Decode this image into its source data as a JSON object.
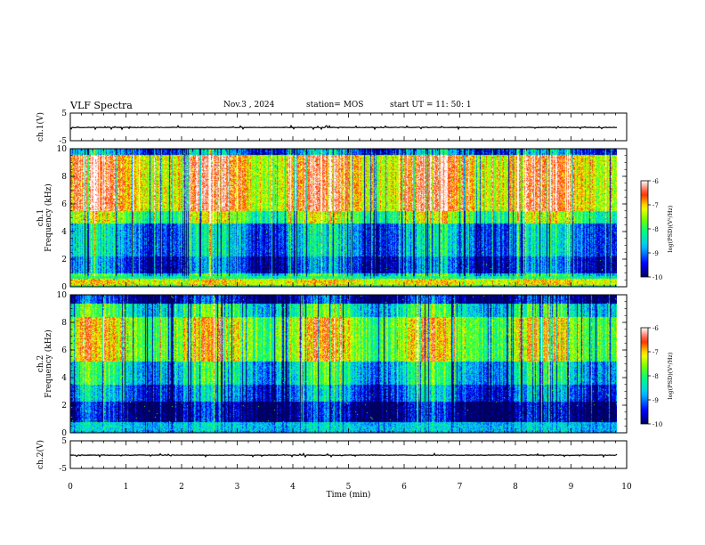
{
  "header": {
    "title": "VLF Spectra",
    "date": "Nov.3  , 2024",
    "station": "station= MOS",
    "start_ut": "start  UT =   11: 50: 1"
  },
  "chart_data": [
    {
      "panel": "ch1-waveform",
      "type": "line",
      "ylabel": "ch.1(V)",
      "ylim": [
        -5,
        5
      ],
      "yticks": [
        "5",
        "-5"
      ],
      "baseline": -0.2,
      "color": "#000000"
    },
    {
      "panel": "ch1-spectrogram",
      "type": "heatmap",
      "ylabel": "ch.1\nFrequency  (kHz)",
      "ylim": [
        0,
        10
      ],
      "yticks": [
        "0",
        "2",
        "4",
        "6",
        "8",
        "10"
      ],
      "colorbar": {
        "label": "log(PSD)(V²/Hz)",
        "range": [
          -10,
          -6
        ],
        "ticks": [
          "-6",
          "-7",
          "-8",
          "-9",
          "-10"
        ],
        "colors": [
          "#000080",
          "#0000ff",
          "#00ffff",
          "#00ff00",
          "#ffff00",
          "#ff0000",
          "#ffffff"
        ]
      }
    },
    {
      "panel": "ch2-spectrogram",
      "type": "heatmap",
      "ylabel": "ch.2\nFrequency  (kHz)",
      "ylim": [
        0,
        10
      ],
      "yticks": [
        "0",
        "2",
        "4",
        "6",
        "8",
        "10"
      ],
      "colorbar": {
        "label": "log(PSD)(V²/Hz)",
        "range": [
          -10,
          -6
        ],
        "ticks": [
          "-6",
          "-7",
          "-8",
          "-9",
          "-10"
        ],
        "colors": [
          "#000080",
          "#0000ff",
          "#00ffff",
          "#00ff00",
          "#ffff00",
          "#ff0000",
          "#ffffff"
        ]
      }
    },
    {
      "panel": "ch2-waveform",
      "type": "line",
      "ylabel": "ch.2(V)",
      "ylim": [
        -5,
        5
      ],
      "yticks": [
        "5",
        "-5"
      ],
      "baseline": -0.2,
      "color": "#000000"
    }
  ],
  "xaxis": {
    "label": "Time  (min)",
    "range": [
      0,
      10
    ],
    "ticks": [
      "0",
      "1",
      "2",
      "3",
      "4",
      "5",
      "6",
      "7",
      "8",
      "9",
      "10"
    ],
    "data_end": 9.83
  }
}
